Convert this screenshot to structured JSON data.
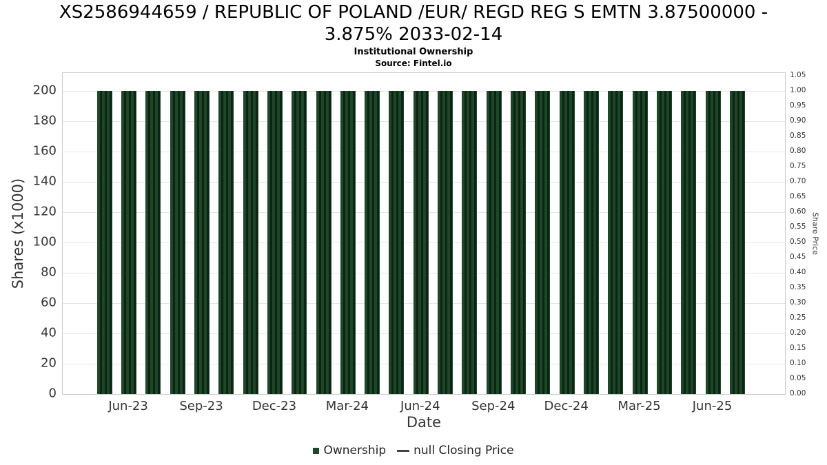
{
  "header": {
    "title_line1": "XS2586944659 / REPUBLIC OF POLAND /EUR/ REGD REG S EMTN 3.87500000 -",
    "title_line2": "3.875% 2033-02-14",
    "subtitle": "Institutional Ownership",
    "source": "Source: Fintel.io"
  },
  "chart_data": {
    "type": "bar",
    "title": "XS2586944659 / REPUBLIC OF POLAND /EUR/ REGD REG S EMTN 3.87500000 - 3.875% 2033-02-14",
    "subtitle": "Institutional Ownership",
    "source": "Source: Fintel.io",
    "xlabel": "Date",
    "ylabel_left": "Shares (x1000)",
    "ylabel_right": "Share Price",
    "categories": [
      "May-23",
      "Jun-23",
      "Jul-23",
      "Aug-23",
      "Sep-23",
      "Oct-23",
      "Nov-23",
      "Dec-23",
      "Jan-24",
      "Feb-24",
      "Mar-24",
      "Apr-24",
      "May-24",
      "Jun-24",
      "Jul-24",
      "Aug-24",
      "Sep-24",
      "Oct-24",
      "Nov-24",
      "Dec-24",
      "Jan-25",
      "Feb-25",
      "Mar-25",
      "Apr-25",
      "May-25",
      "Jun-25",
      "Jul-25"
    ],
    "values": [
      200,
      200,
      200,
      200,
      200,
      200,
      200,
      200,
      200,
      200,
      200,
      200,
      200,
      200,
      200,
      200,
      200,
      200,
      200,
      200,
      200,
      200,
      200,
      200,
      200,
      200,
      200
    ],
    "series": [
      {
        "name": "Ownership",
        "type": "bar",
        "values": [
          200,
          200,
          200,
          200,
          200,
          200,
          200,
          200,
          200,
          200,
          200,
          200,
          200,
          200,
          200,
          200,
          200,
          200,
          200,
          200,
          200,
          200,
          200,
          200,
          200,
          200,
          200
        ]
      },
      {
        "name": "null Closing Price",
        "type": "line",
        "values": []
      }
    ],
    "x_tick_labels": [
      "Jun-23",
      "Sep-23",
      "Dec-23",
      "Mar-24",
      "Jun-24",
      "Sep-24",
      "Dec-24",
      "Mar-25",
      "Jun-25"
    ],
    "x_tick_indices": [
      1,
      4,
      7,
      10,
      13,
      16,
      19,
      22,
      25
    ],
    "left_ticks": [
      200,
      180,
      160,
      140,
      120,
      100,
      80,
      60,
      40,
      20,
      0
    ],
    "right_ticks": [
      "1.05",
      "1.00",
      "0.95",
      "0.90",
      "0.85",
      "0.80",
      "0.75",
      "0.70",
      "0.65",
      "0.60",
      "0.55",
      "0.50",
      "0.45",
      "0.40",
      "0.35",
      "0.30",
      "0.25",
      "0.20",
      "0.15",
      "0.10",
      "0.05",
      "0.00"
    ],
    "ylim_left": [
      0,
      212
    ],
    "ylim_right": [
      0,
      1.06
    ],
    "grid": true,
    "legend_position": "bottom",
    "bar_color": "#1e4728",
    "legend": {
      "ownership_label": "Ownership",
      "price_label": "null Closing Price"
    }
  }
}
